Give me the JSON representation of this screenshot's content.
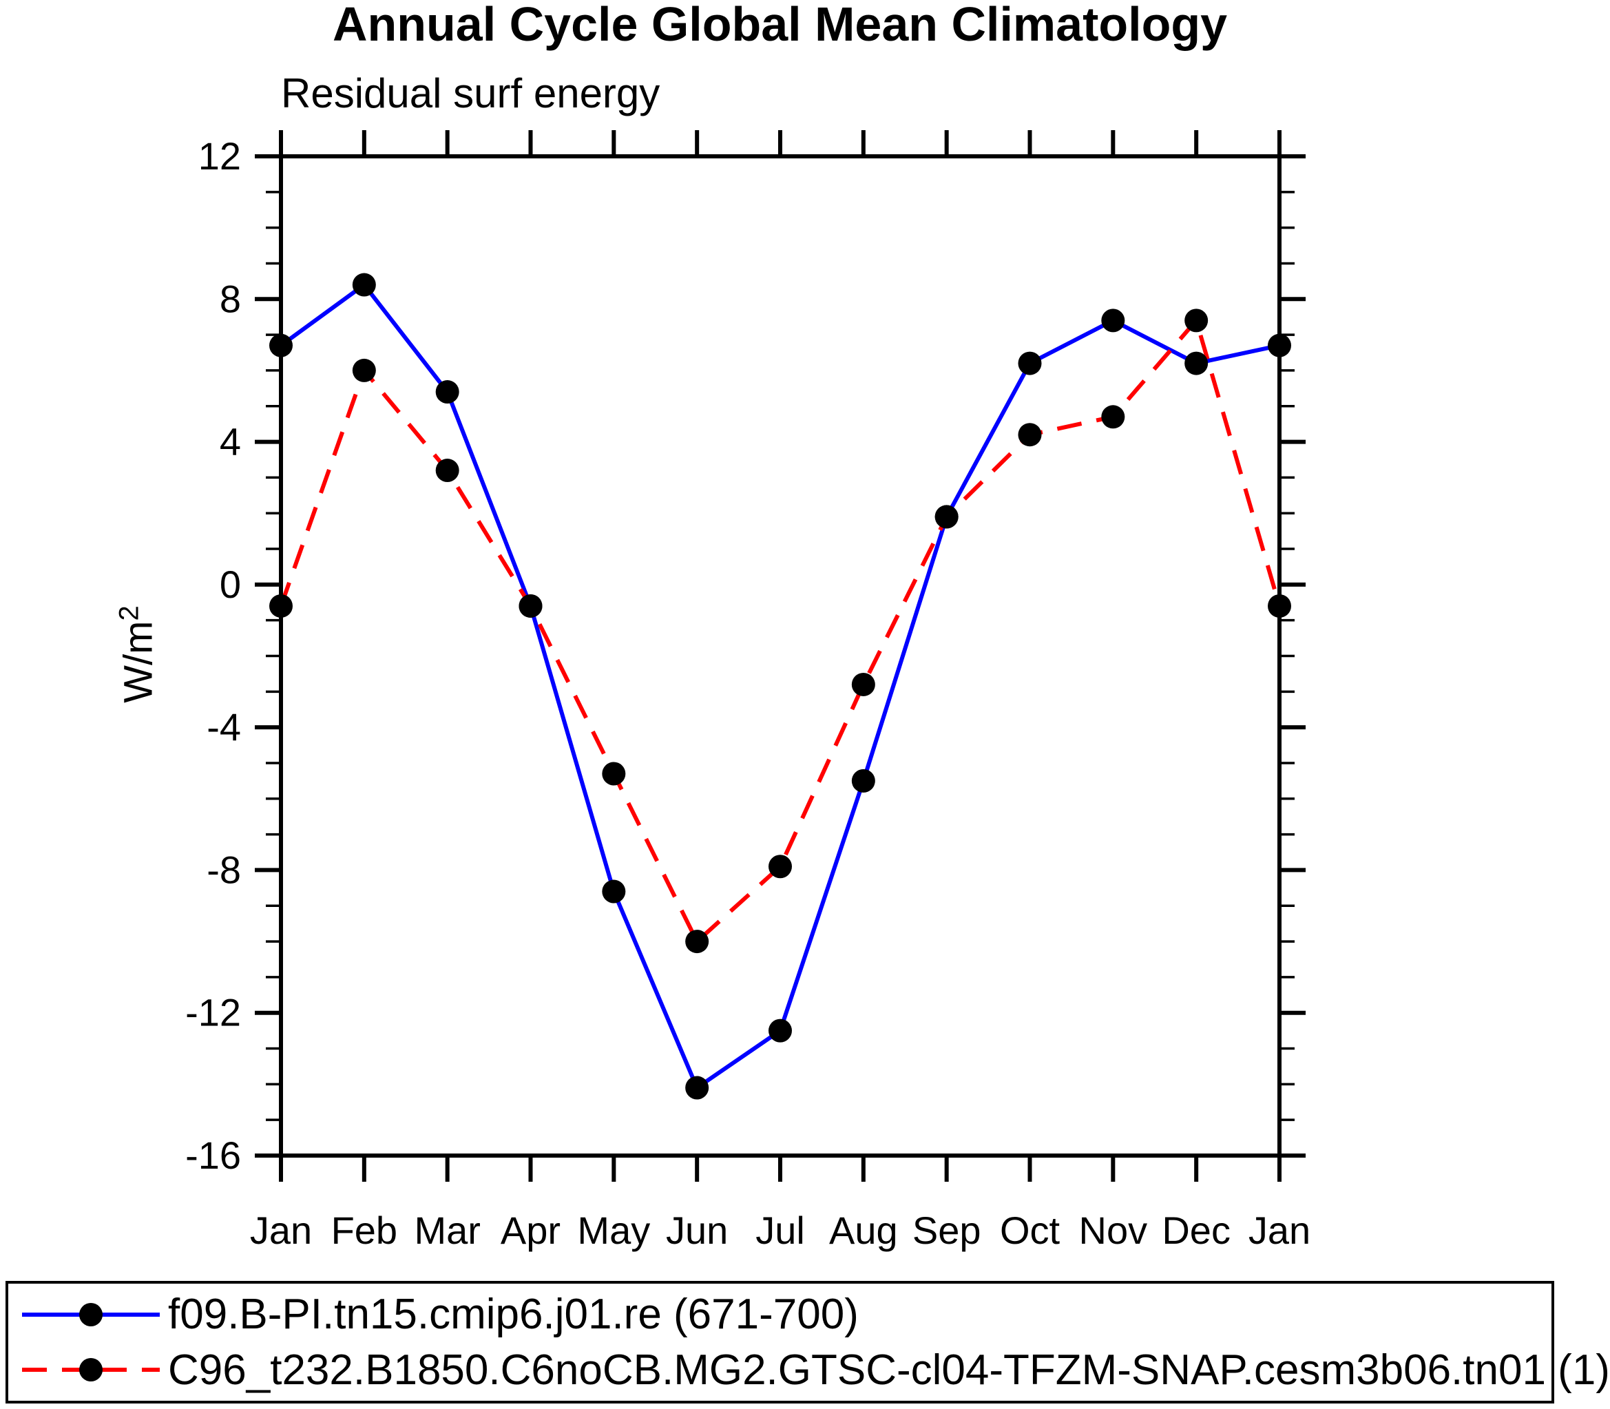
{
  "chart_data": {
    "type": "line",
    "title": "Annual Cycle Global Mean Climatology",
    "subtitle": "Residual surf energy",
    "y_axis_label": {
      "base": "W/m",
      "sup": "2"
    },
    "categories": [
      "Jan",
      "Feb",
      "Mar",
      "Apr",
      "May",
      "Jun",
      "Jul",
      "Aug",
      "Sep",
      "Oct",
      "Nov",
      "Dec",
      "Jan"
    ],
    "ylim": [
      -16,
      12
    ],
    "y_ticks_major": [
      12,
      8,
      4,
      0,
      -4,
      -8,
      -12,
      -16
    ],
    "y_minor_step": 1,
    "grid": false,
    "legend_position": "bottom",
    "marker_color": "#000000",
    "series": [
      {
        "name": "f09.B-PI.tn15.cmip6.j01.re (671-700)",
        "color": "#0000ff",
        "style": "solid",
        "marker": "circle",
        "values": [
          6.7,
          8.4,
          5.4,
          -0.6,
          -8.6,
          -14.1,
          -12.5,
          -5.5,
          1.9,
          6.2,
          7.4,
          6.2,
          6.7
        ]
      },
      {
        "name": "C96_t232.B1850.C6noCB.MG2.GTSC-cl04-TFZM-SNAP.cesm3b06.tn01 (1)",
        "color": "#ff0000",
        "style": "dashed",
        "marker": "circle",
        "values": [
          -0.6,
          6.0,
          3.2,
          -0.6,
          -5.3,
          -10.0,
          -7.9,
          -2.8,
          1.9,
          4.2,
          4.7,
          7.4,
          -0.6
        ]
      }
    ]
  }
}
